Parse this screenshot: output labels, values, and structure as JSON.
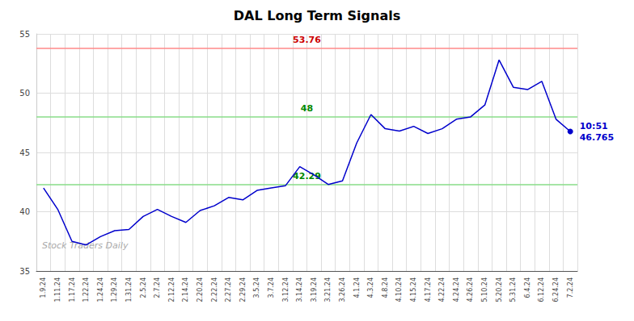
{
  "chart_data": {
    "type": "line",
    "title": "DAL Long Term Signals",
    "categories": [
      "1.9.24",
      "1.11.24",
      "1.17.24",
      "1.22.24",
      "1.24.24",
      "1.29.24",
      "1.31.24",
      "2.5.24",
      "2.7.24",
      "2.12.24",
      "2.14.24",
      "2.20.24",
      "2.22.24",
      "2.27.24",
      "2.29.24",
      "3.5.24",
      "3.7.24",
      "3.12.24",
      "3.14.24",
      "3.19.24",
      "3.21.24",
      "3.26.24",
      "4.1.24",
      "4.3.24",
      "4.8.24",
      "4.10.24",
      "4.15.24",
      "4.17.24",
      "4.22.24",
      "4.24.24",
      "4.26.24",
      "5.10.24",
      "5.20.24",
      "5.31.24",
      "6.4.24",
      "6.12.24",
      "6.24.24",
      "7.2.24"
    ],
    "values": [
      42.0,
      40.2,
      37.5,
      37.2,
      37.9,
      38.4,
      38.5,
      39.6,
      40.2,
      39.6,
      39.1,
      40.1,
      40.5,
      41.2,
      41.0,
      41.8,
      42.0,
      42.2,
      43.8,
      43.1,
      42.3,
      42.6,
      45.8,
      48.2,
      47.0,
      46.8,
      47.2,
      46.6,
      47.0,
      47.8,
      48.0,
      49.0,
      52.8,
      50.5,
      50.3,
      51.0,
      47.8,
      46.765
    ],
    "color": "#0000cc",
    "ylim": [
      35,
      55
    ],
    "yticks": [
      35,
      40,
      45,
      50,
      55
    ],
    "grid": true,
    "hlines": [
      {
        "value": 53.76,
        "label": "53.76",
        "color": "#ff8888",
        "label_color": "#cc0000"
      },
      {
        "value": 48.0,
        "label": "48",
        "color": "#88dd88",
        "label_color": "#008800"
      },
      {
        "value": 42.29,
        "label": "42.29",
        "color": "#88dd88",
        "label_color": "#008800"
      }
    ],
    "annotations": [
      {
        "text": "10:51",
        "color": "#0000cc"
      },
      {
        "text": "46.765",
        "color": "#0000cc"
      }
    ],
    "watermark": {
      "text": "Stock Traders Daily",
      "color": "#aaaaaa"
    }
  }
}
